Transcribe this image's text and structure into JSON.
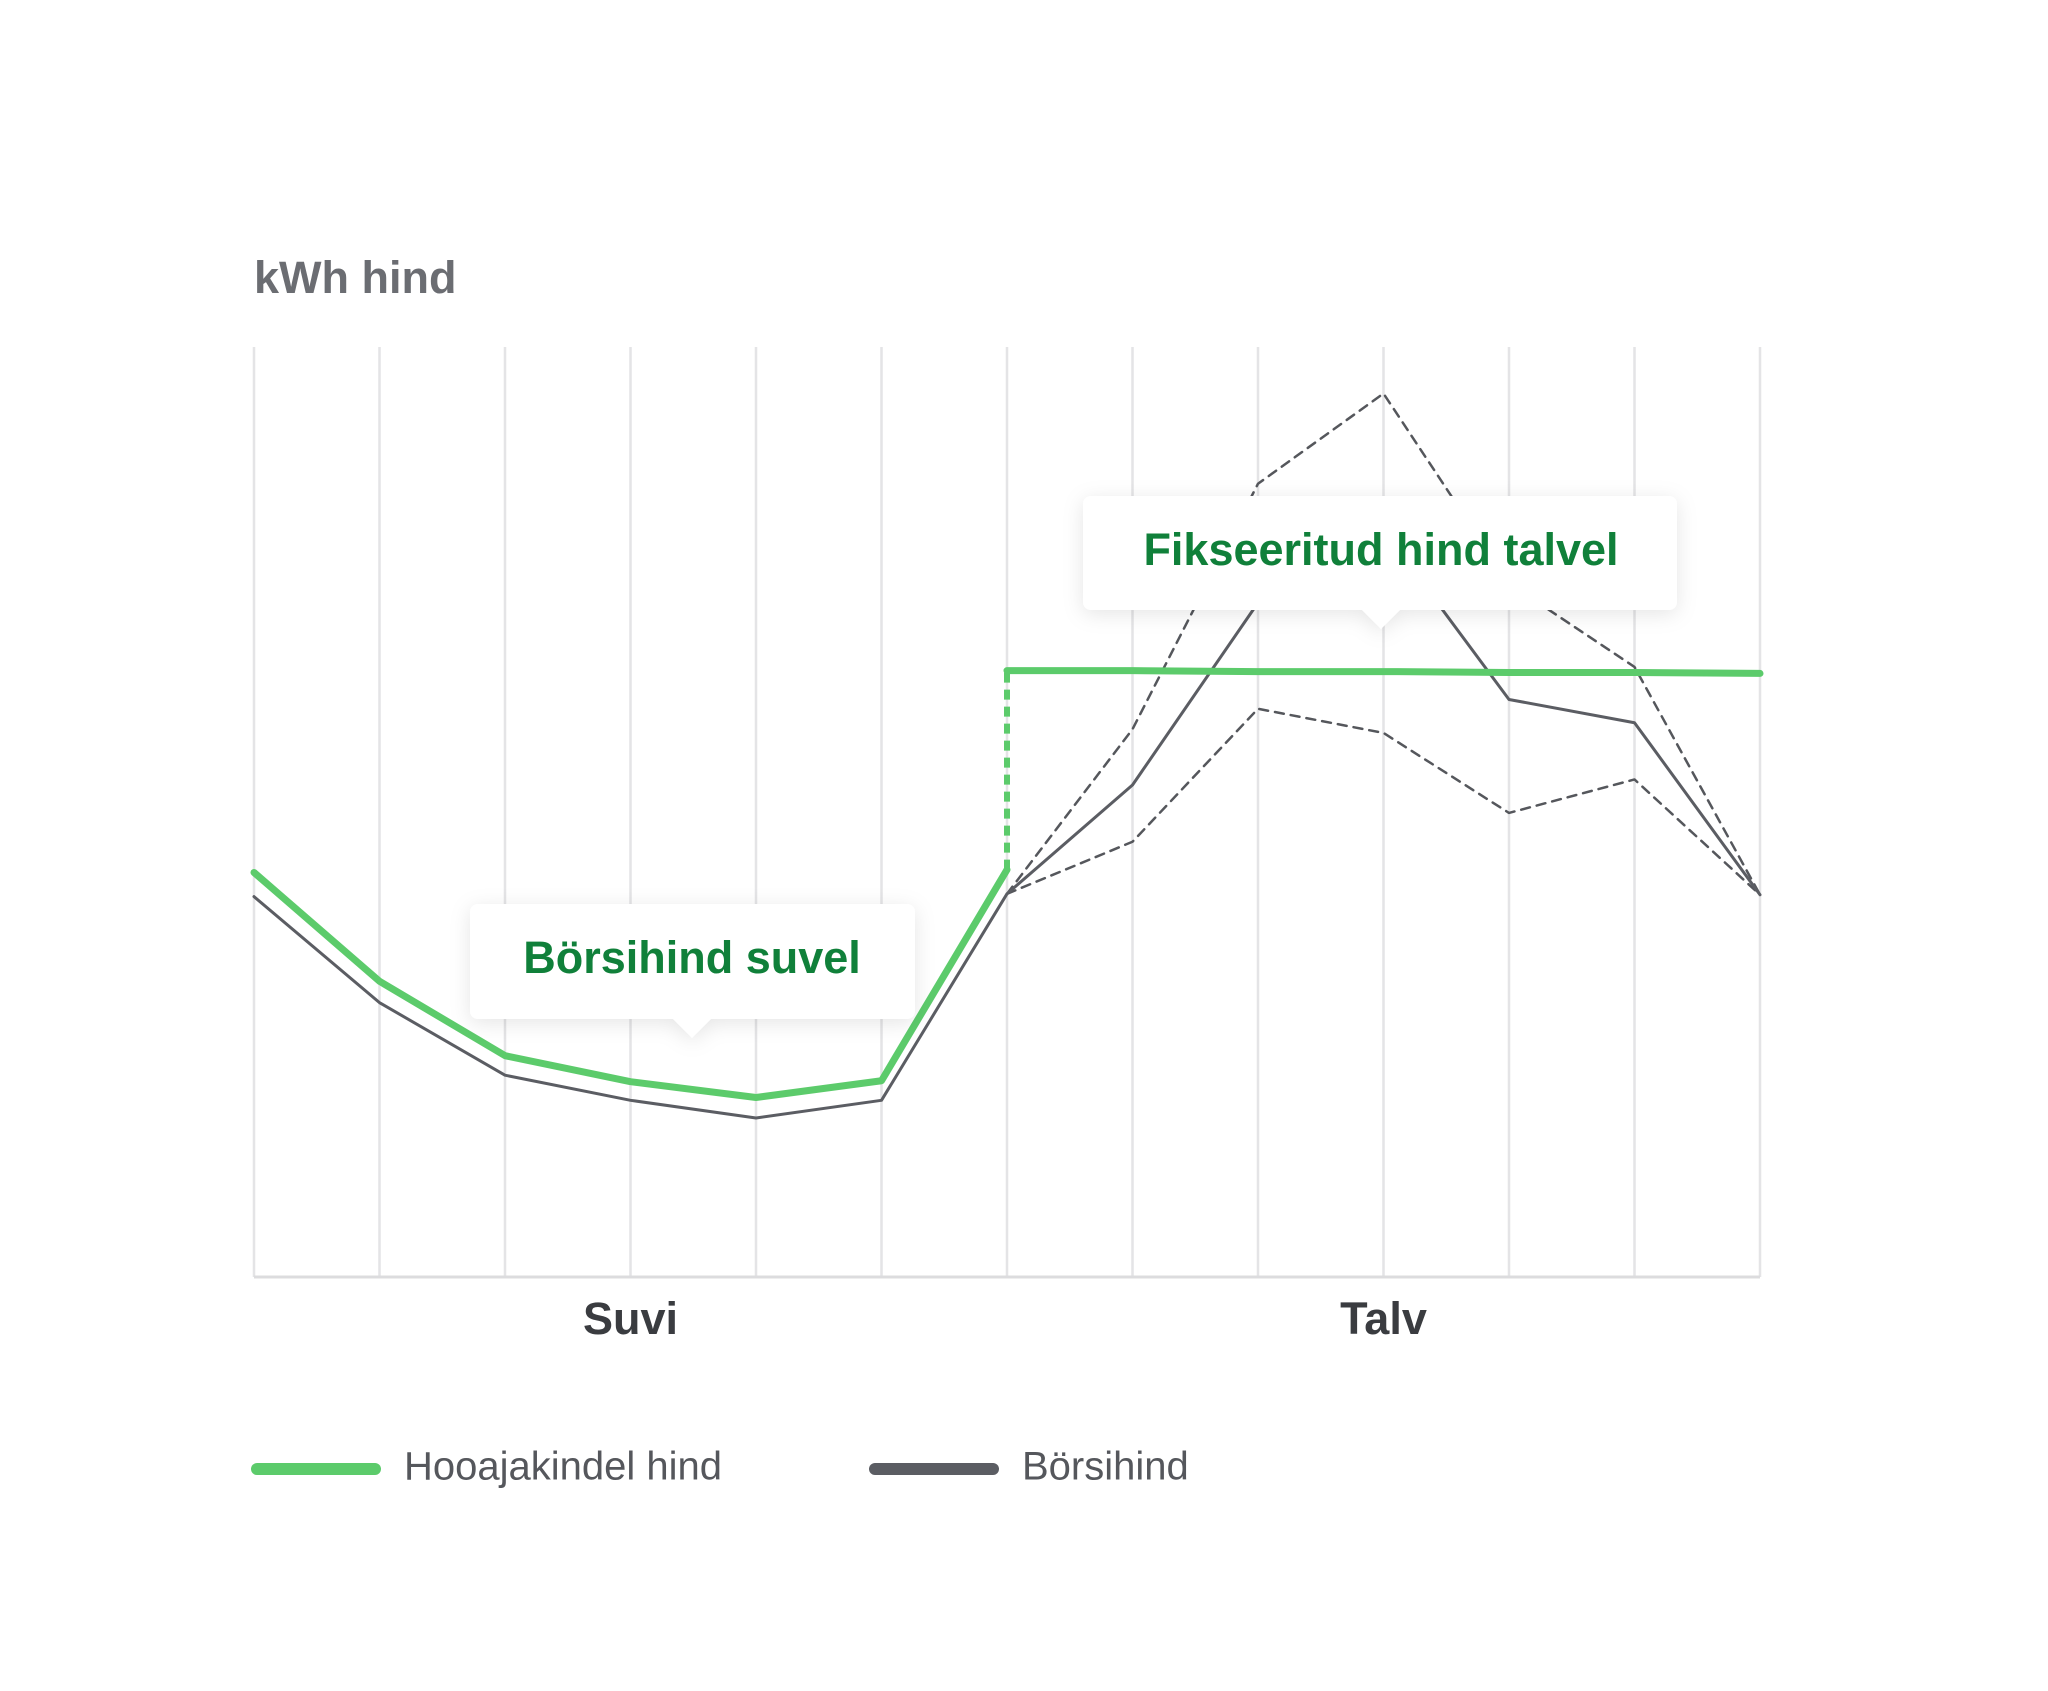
{
  "chart_data": {
    "type": "line",
    "title": "kWh hind",
    "x": [
      0,
      1,
      2,
      3,
      4,
      5,
      6,
      7,
      8,
      9,
      10,
      11,
      12
    ],
    "xlim": [
      0,
      12
    ],
    "xticks": [
      {
        "value": 3,
        "label": "Suvi"
      },
      {
        "value": 9,
        "label": "Talv"
      }
    ],
    "ylim": [
      0,
      100
    ],
    "grid": true,
    "series": [
      {
        "name": "Hooajakindel hind",
        "color": "#5ccb6b",
        "x": [
          0,
          1,
          2,
          3,
          4,
          5,
          6,
          6,
          7,
          8,
          9,
          10,
          11,
          12
        ],
        "values": [
          43.5,
          31.8,
          23.8,
          21.0,
          19.3,
          21.1,
          43.8,
          65.2,
          65.2,
          65.1,
          65.1,
          65.0,
          65.0,
          64.9
        ]
      },
      {
        "name": "Börsihind",
        "color": "#5b5d63",
        "values": [
          40.9,
          29.5,
          21.7,
          19.0,
          17.1,
          19.0,
          41.2,
          52.9,
          72.5,
          80.3,
          62.1,
          59.6,
          41.1
        ]
      },
      {
        "color": "#55575c",
        "dashed": true,
        "values": [
          null,
          null,
          null,
          null,
          null,
          null,
          41.2,
          58.9,
          85.3,
          95.0,
          74.6,
          65.6,
          41.1
        ]
      },
      {
        "color": "#55575c",
        "dashed": true,
        "values": [
          null,
          null,
          null,
          null,
          null,
          null,
          41.2,
          46.8,
          61.1,
          58.5,
          49.9,
          53.5,
          41.1
        ]
      }
    ],
    "annotations": [
      "Börsihind suvel",
      "Fikseeritud hind talvel"
    ]
  }
}
